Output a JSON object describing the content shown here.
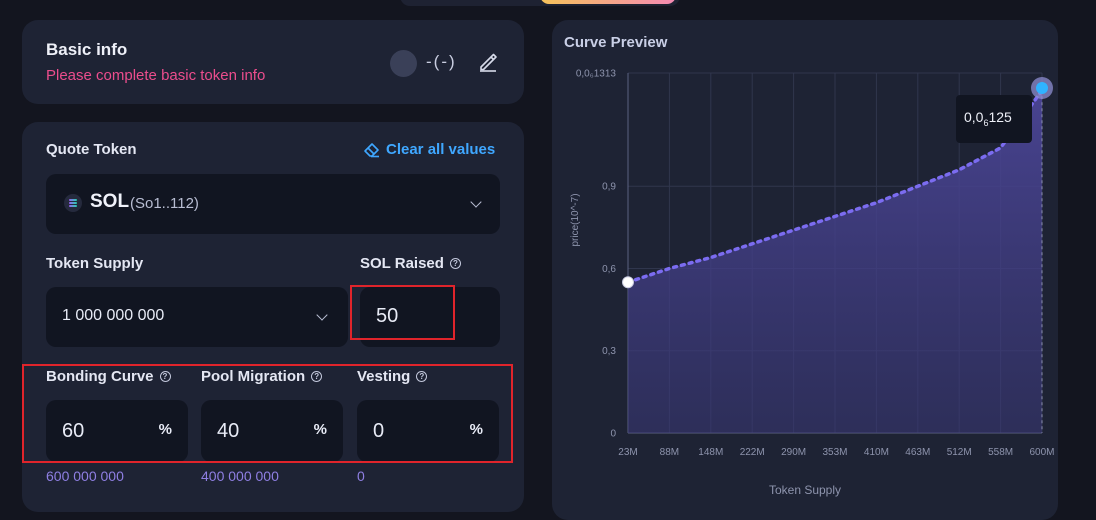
{
  "basic_info": {
    "title": "Basic info",
    "subtitle": "Please complete basic token info",
    "ticker": "-(-)"
  },
  "quote_token": {
    "label": "Quote Token",
    "clear_label": "Clear all values",
    "token_name": "SOL",
    "token_addr": "(So1..112)"
  },
  "token_supply": {
    "label": "Token Supply",
    "value": "1 000 000 000"
  },
  "sol_raised": {
    "label": "SOL Raised",
    "value": "50"
  },
  "bonding_curve": {
    "label": "Bonding Curve",
    "value": "60",
    "unit": "%",
    "amount": "600 000 000"
  },
  "pool_migration": {
    "label": "Pool Migration",
    "value": "40",
    "unit": "%",
    "amount": "400 000 000"
  },
  "vesting": {
    "label": "Vesting",
    "value": "0",
    "unit": "%",
    "amount": "0"
  },
  "curve_preview": {
    "title": "Curve Preview",
    "tooltip_prefix": "0,0",
    "tooltip_sub": "6",
    "tooltip_suffix": "125"
  },
  "chart_data": {
    "type": "area",
    "title": "Curve Preview",
    "xlabel": "Token Supply",
    "ylabel": "price(10^-7)",
    "x_tick_labels": [
      "23M",
      "88M",
      "148M",
      "222M",
      "290M",
      "353M",
      "410M",
      "463M",
      "512M",
      "558M",
      "600M"
    ],
    "y_tick_labels": [
      "0",
      "0,3",
      "0,6",
      "0,9",
      "0,0₆1313"
    ],
    "y_tick_values": [
      0,
      0.3,
      0.6,
      0.9,
      1.313
    ],
    "ylim": [
      0,
      1.313
    ],
    "x": [
      "23M",
      "88M",
      "148M",
      "222M",
      "290M",
      "353M",
      "410M",
      "463M",
      "512M",
      "558M",
      "600M"
    ],
    "values": [
      0.55,
      0.6,
      0.64,
      0.69,
      0.74,
      0.79,
      0.84,
      0.9,
      0.96,
      1.04,
      1.25
    ],
    "grid": true,
    "colors": {
      "line": "#7b6cf0",
      "fill": "#3a3878",
      "grid": "#30364d",
      "end_marker": "#2fb3ff"
    }
  },
  "colors": {
    "accent_blue": "#3fa7ff",
    "warning_pink": "#ec4d8d",
    "amount_purple": "#8f7fe3",
    "highlight_red": "#e0242b"
  }
}
